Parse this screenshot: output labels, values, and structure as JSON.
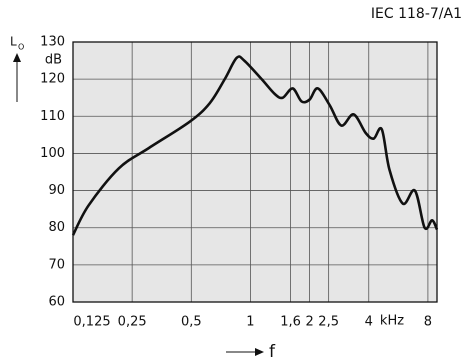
{
  "chart_data": {
    "type": "line",
    "title": "IEC 118-7/A1",
    "y_label": "L",
    "y_label_subscript": "O",
    "y_unit": "dB",
    "x_label": "f",
    "x_unit": "kHz",
    "x_scale": "log",
    "grid": true,
    "xlim": [
      0.125,
      8.9
    ],
    "ylim": [
      60,
      130
    ],
    "xticks": [
      {
        "value": 0.125,
        "label": "0,125"
      },
      {
        "value": 0.25,
        "label": "0,25"
      },
      {
        "value": 0.5,
        "label": "0,5"
      },
      1,
      {
        "value": 1.6,
        "label": "1,6"
      },
      2,
      {
        "value": 2.5,
        "label": "2,5"
      },
      4,
      8
    ],
    "yticks": [
      60,
      70,
      80,
      90,
      100,
      110,
      120,
      130
    ],
    "series": [
      {
        "color": "#111111",
        "x": [
          0.125,
          0.15,
          0.214,
          0.305,
          0.49,
          0.62,
          0.74,
          0.85,
          0.93,
          1.14,
          1.33,
          1.46,
          1.64,
          1.82,
          2.0,
          2.2,
          2.53,
          2.9,
          3.35,
          3.86,
          4.24,
          4.66,
          5.1,
          5.96,
          6.87,
          7.7,
          8.4,
          8.9
        ],
        "values": [
          78,
          86,
          96,
          101.5,
          108.5,
          113.5,
          120,
          125.7,
          125,
          120,
          116,
          115,
          117.5,
          114,
          114.5,
          117.5,
          113,
          107.5,
          110.5,
          105.5,
          104,
          106.5,
          95.6,
          86.5,
          90,
          80,
          82,
          79.5
        ]
      }
    ]
  }
}
